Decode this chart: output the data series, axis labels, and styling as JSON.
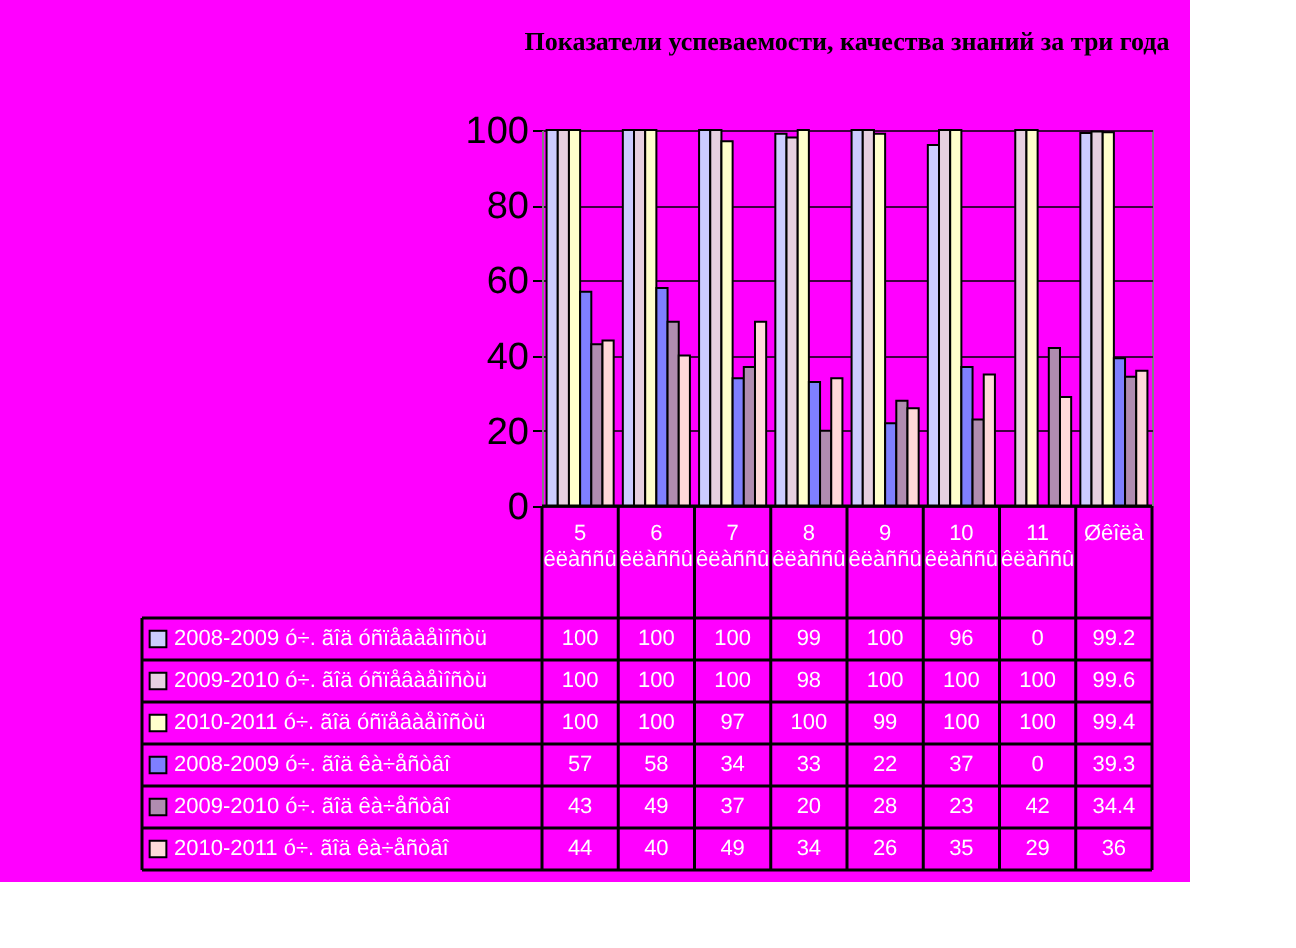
{
  "chart_data": {
    "type": "bar",
    "title": "Показатели успеваемости, качества знаний за три года",
    "categories": [
      "5 êëàññû",
      "6 êëàññû",
      "7 êëàññû",
      "8 êëàññû",
      "9 êëàññû",
      "10 êëàññû",
      "11 êëàññû",
      "Øêîëà"
    ],
    "series": [
      {
        "name": "2008-2009 ó÷. ãîä óñïåâàåìîñòü",
        "color": "#ccccff",
        "values": [
          100,
          100,
          100,
          99,
          100,
          96,
          0,
          99.2
        ]
      },
      {
        "name": "2009-2010 ó÷. ãîä óñïåâàåìîñòü",
        "color": "#e6d0e0",
        "values": [
          100,
          100,
          100,
          98,
          100,
          100,
          100,
          99.6
        ]
      },
      {
        "name": "2010-2011 ó÷. ãîä óñïåâàåìîñòü",
        "color": "#ffffcc",
        "values": [
          100,
          100,
          97,
          100,
          99,
          100,
          100,
          99.4
        ]
      },
      {
        "name": "2008-2009 ó÷. ãîä êà÷åñòâî",
        "color": "#7f7fff",
        "values": [
          57,
          58,
          34,
          33,
          22,
          37,
          0,
          39.3
        ]
      },
      {
        "name": "2009-2010 ó÷. ãîä êà÷åñòâî",
        "color": "#b08cb0",
        "values": [
          43,
          49,
          37,
          20,
          28,
          23,
          42,
          34.4
        ]
      },
      {
        "name": "2010-2011 ó÷. ãîä êà÷åñòâî",
        "color": "#ffd9d9",
        "values": [
          44,
          40,
          49,
          34,
          26,
          35,
          29,
          36
        ]
      }
    ],
    "ylim": [
      0,
      100
    ],
    "yticks": [
      0,
      20,
      40,
      60,
      80,
      100
    ],
    "grid": "y",
    "legend": "bottom",
    "data_labels": true
  }
}
